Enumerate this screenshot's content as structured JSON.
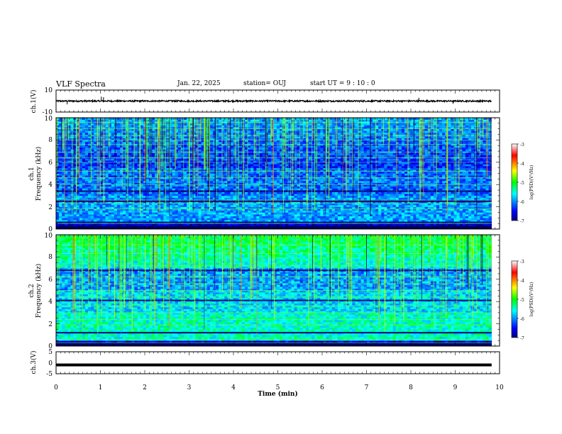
{
  "header": {
    "title": "VLF Spectra",
    "date": "Jan. 22, 2025",
    "station": "station= OUJ",
    "start": "start  UT =   9 : 10 : 0"
  },
  "chart_data": [
    {
      "type": "line",
      "id": "ch1-waveform",
      "ylabel": "ch.1(V)",
      "ylim": [
        -10,
        10
      ],
      "yticks": [
        "10",
        "-10"
      ],
      "xlim": [
        0,
        10
      ],
      "baseline": 0,
      "color": "#000000",
      "spikes": [
        {
          "x": 0.25,
          "y": -3.0
        },
        {
          "x": 1.02,
          "y": 4.0
        },
        {
          "x": 1.07,
          "y": 3.5
        },
        {
          "x": 8.18,
          "y": 3.0
        },
        {
          "x": 8.95,
          "y": -2.5
        }
      ]
    },
    {
      "type": "heatmap",
      "id": "ch1-spectrogram",
      "ylabel": "ch.1\nFrequency (kHz)",
      "ylabel_line1": "ch.1",
      "ylabel_line2": "Frequency (kHz)",
      "ylim": [
        0,
        10
      ],
      "yticks": [
        "0",
        "2",
        "4",
        "6",
        "8",
        "10"
      ],
      "xlim": [
        0,
        10
      ],
      "data_end_min": 9.82,
      "colorbar": {
        "label": "log(PSD)(V²/Hz)",
        "range": [
          -7,
          -3
        ],
        "ticks": [
          "-7",
          "-6",
          "-5",
          "-4",
          "-3"
        ]
      },
      "bands_khz": [
        0.5,
        0.6,
        1.8,
        2.3,
        2.5,
        2.6,
        3.4,
        4.0,
        4.6,
        5.2,
        6.0,
        6.4,
        6.9,
        7.6,
        8.0,
        8.4,
        9.0,
        9.6
      ],
      "strong_bands_khz": [
        0.6,
        2.5,
        3.4
      ]
    },
    {
      "type": "heatmap",
      "id": "ch2-spectrogram",
      "ylabel": "ch.2\nFrequency (kHz)",
      "ylabel_line1": "ch.2",
      "ylabel_line2": "Frequency (kHz)",
      "ylim": [
        0,
        10
      ],
      "yticks": [
        "0",
        "2",
        "4",
        "6",
        "8",
        "10"
      ],
      "xlim": [
        0,
        10
      ],
      "data_end_min": 9.82,
      "colorbar": {
        "label": "log(PSD)(V²/Hz)",
        "range": [
          -7,
          -3
        ],
        "ticks": [
          "-7",
          "-6",
          "-5",
          "-4",
          "-3"
        ]
      },
      "bands_khz": [
        0.3,
        0.6,
        1.2,
        1.9,
        2.4,
        3.0,
        3.6,
        4.1,
        4.4,
        5.0,
        5.6,
        6.2,
        6.8,
        7.2,
        8.3,
        9.1
      ],
      "strong_bands_khz": [
        1.2,
        4.1,
        6.8
      ]
    },
    {
      "type": "line",
      "id": "ch3-waveform",
      "ylabel": "ch.3(V)",
      "ylim": [
        -5,
        5
      ],
      "yticks": [
        "5",
        "0",
        "-5"
      ],
      "xlim": [
        0,
        10
      ],
      "value": -1.0,
      "color": "#000000",
      "xlabel": "Time  (min)",
      "xticks": [
        "0",
        "1",
        "2",
        "3",
        "4",
        "5",
        "6",
        "7",
        "8",
        "9",
        "10"
      ]
    }
  ]
}
